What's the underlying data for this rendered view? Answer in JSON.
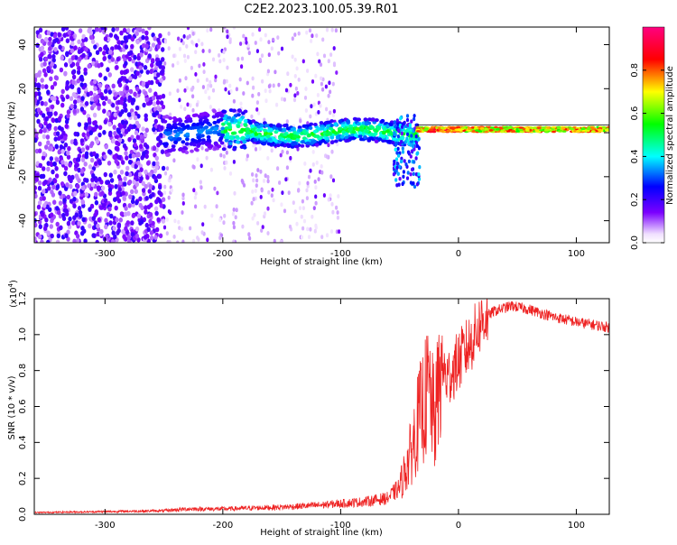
{
  "title": "C2E2.2023.100.05.39.R01",
  "chart_data": [
    {
      "type": "heatmap",
      "xlabel": "Height of straight line (km)",
      "ylabel": "Frequency (Hz)",
      "xlim": [
        -360,
        128
      ],
      "ylim": [
        -50,
        48
      ],
      "xticks": [
        -300,
        -200,
        -100,
        0,
        100
      ],
      "yticks": [
        -40,
        -20,
        0,
        20,
        40
      ],
      "colorbar": {
        "label": "Normalized spectral amplitude",
        "range": [
          0.0,
          1.0
        ],
        "ticks": [
          0.0,
          0.2,
          0.4,
          0.6,
          0.8
        ],
        "colormap": [
          "#ffffff",
          "#7b00ff",
          "#0000ff",
          "#00ffff",
          "#00ff00",
          "#ffff00",
          "#ff0000",
          "#ff00b0"
        ]
      },
      "features": [
        {
          "x_range": [
            -360,
            -250
          ],
          "note": "broadband noise, amplitude ~0.1-0.2"
        },
        {
          "x_range": [
            -250,
            -100
          ],
          "note": "sparse faint noise"
        },
        {
          "x_range": [
            -250,
            -35
          ],
          "note": "band near 0 Hz, width ~8 Hz"
        },
        {
          "x_range": [
            -35,
            128
          ],
          "note": "narrow line near 1-2 Hz, amplitude 0.6-0.9"
        }
      ]
    },
    {
      "type": "line",
      "xlabel": "Height of straight line (km)",
      "ylabel": "SNR (10 * v/v)",
      "y_multiplier": "(x10",
      "y_multiplier_exp": "4",
      "y_multiplier_close": ")",
      "xlim": [
        -360,
        128
      ],
      "ylim": [
        0.0,
        1.2
      ],
      "xticks": [
        -300,
        -200,
        -100,
        0,
        100
      ],
      "yticks": [
        "0.0",
        "0.2",
        "0.4",
        "0.6",
        "0.8",
        "1.0",
        "1.2"
      ],
      "color": "#ee2222",
      "series": [
        {
          "x": [
            -360,
            -300,
            -250,
            -230,
            -200,
            -150,
            -120,
            -100,
            -80,
            -60,
            -50,
            -40,
            -35,
            -30,
            -25,
            -20,
            -15,
            -10,
            0,
            10,
            20,
            30,
            45,
            60,
            80,
            100,
            128
          ],
          "y": [
            0.01,
            0.015,
            0.02,
            0.03,
            0.03,
            0.04,
            0.05,
            0.06,
            0.07,
            0.09,
            0.15,
            0.35,
            0.5,
            0.6,
            0.7,
            0.5,
            0.85,
            0.75,
            0.85,
            0.95,
            1.08,
            1.13,
            1.16,
            1.14,
            1.1,
            1.07,
            1.04
          ]
        }
      ]
    }
  ]
}
